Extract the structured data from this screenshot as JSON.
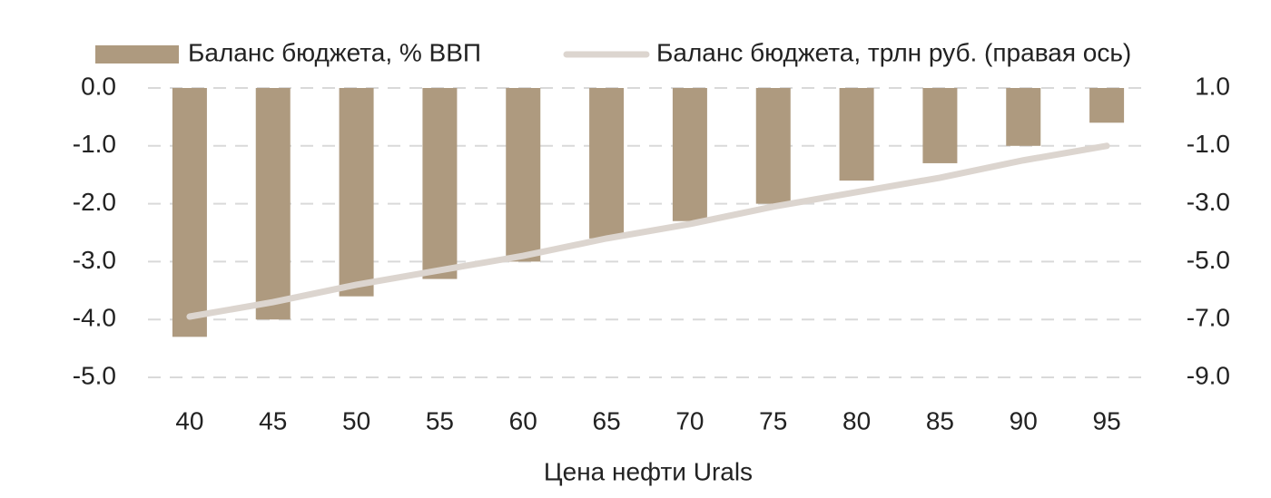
{
  "chart_data": {
    "type": "bar",
    "x_label": "Цена нефти Urals",
    "categories": [
      "40",
      "45",
      "50",
      "55",
      "60",
      "65",
      "70",
      "75",
      "80",
      "85",
      "90",
      "95"
    ],
    "series": [
      {
        "name": "Баланс бюджета, % ВВП",
        "type": "bar",
        "color": "#ae9a7f",
        "values": [
          -4.3,
          -4.0,
          -3.6,
          -3.3,
          -3.0,
          -2.6,
          -2.3,
          -2.0,
          -1.6,
          -1.3,
          -1.0,
          -0.6
        ]
      },
      {
        "name": "Баланс бюджета, трлн руб. (правая ось)",
        "type": "line",
        "axis": "y2",
        "color": "#dcd5cf",
        "values": [
          -6.9,
          -6.4,
          -5.8,
          -5.3,
          -4.8,
          -4.2,
          -3.7,
          -3.1,
          -2.6,
          -2.1,
          -1.5,
          -1.0
        ]
      }
    ],
    "ylim": [
      -5,
      0
    ],
    "yticks": [
      {
        "value": 0,
        "label": "0.0"
      },
      {
        "value": -1,
        "label": "-1.0"
      },
      {
        "value": -2,
        "label": "-2.0"
      },
      {
        "value": -3,
        "label": "-3.0"
      },
      {
        "value": -4,
        "label": "-4.0"
      },
      {
        "value": -5,
        "label": "-5.0"
      }
    ],
    "y2lim": [
      -9,
      1
    ],
    "y2ticks": [
      {
        "value": 1,
        "label": "1.0"
      },
      {
        "value": -1,
        "label": "-1.0"
      },
      {
        "value": -3,
        "label": "-3.0"
      },
      {
        "value": -5,
        "label": "-5.0"
      },
      {
        "value": -7,
        "label": "-7.0"
      },
      {
        "value": -9,
        "label": "-9.0"
      }
    ],
    "grid": true,
    "legend": "top"
  }
}
